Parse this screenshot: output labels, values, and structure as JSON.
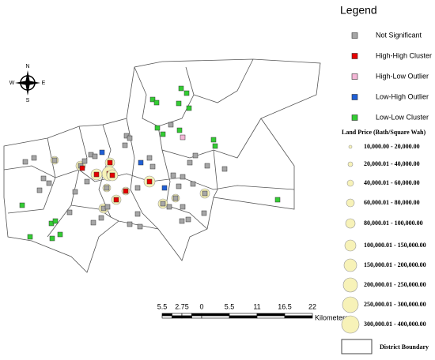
{
  "legend": {
    "title": "Legend",
    "categories": [
      {
        "label": "Not Significant",
        "color": "#a6a6a6"
      },
      {
        "label": "High-High Cluster",
        "color": "#e60000"
      },
      {
        "label": "High-Low Outlier",
        "color": "#f4b6d6"
      },
      {
        "label": "Low-High Outlier",
        "color": "#1f5fd6"
      },
      {
        "label": "Low-Low Cluster",
        "color": "#33cc33"
      }
    ],
    "land_price": {
      "title": "Land Price (Bath/Square Wah)",
      "classes": [
        "10,000.00 - 20,000.00",
        "20,000.01 - 40,000.00",
        "40,000.01 - 60,000.00",
        "60,000.01 - 80,000.00",
        "80,000.01 - 100,000.00",
        "100,000.01 - 150,000.00",
        "150,000.01 - 200,000.00",
        "200,000.01 - 250,000.00",
        "250,000.01 - 300,000.00",
        "300,000.01 - 400,000.00"
      ]
    },
    "district_boundary": "District Boundary"
  },
  "compass": {
    "north": "N",
    "south": "S",
    "east": "E",
    "west": "W"
  },
  "scale_bar": {
    "ticks": [
      "5.5",
      "2.75",
      "0",
      "5.5",
      "11",
      "16.5",
      "22"
    ],
    "unit": "Kilometers"
  }
}
